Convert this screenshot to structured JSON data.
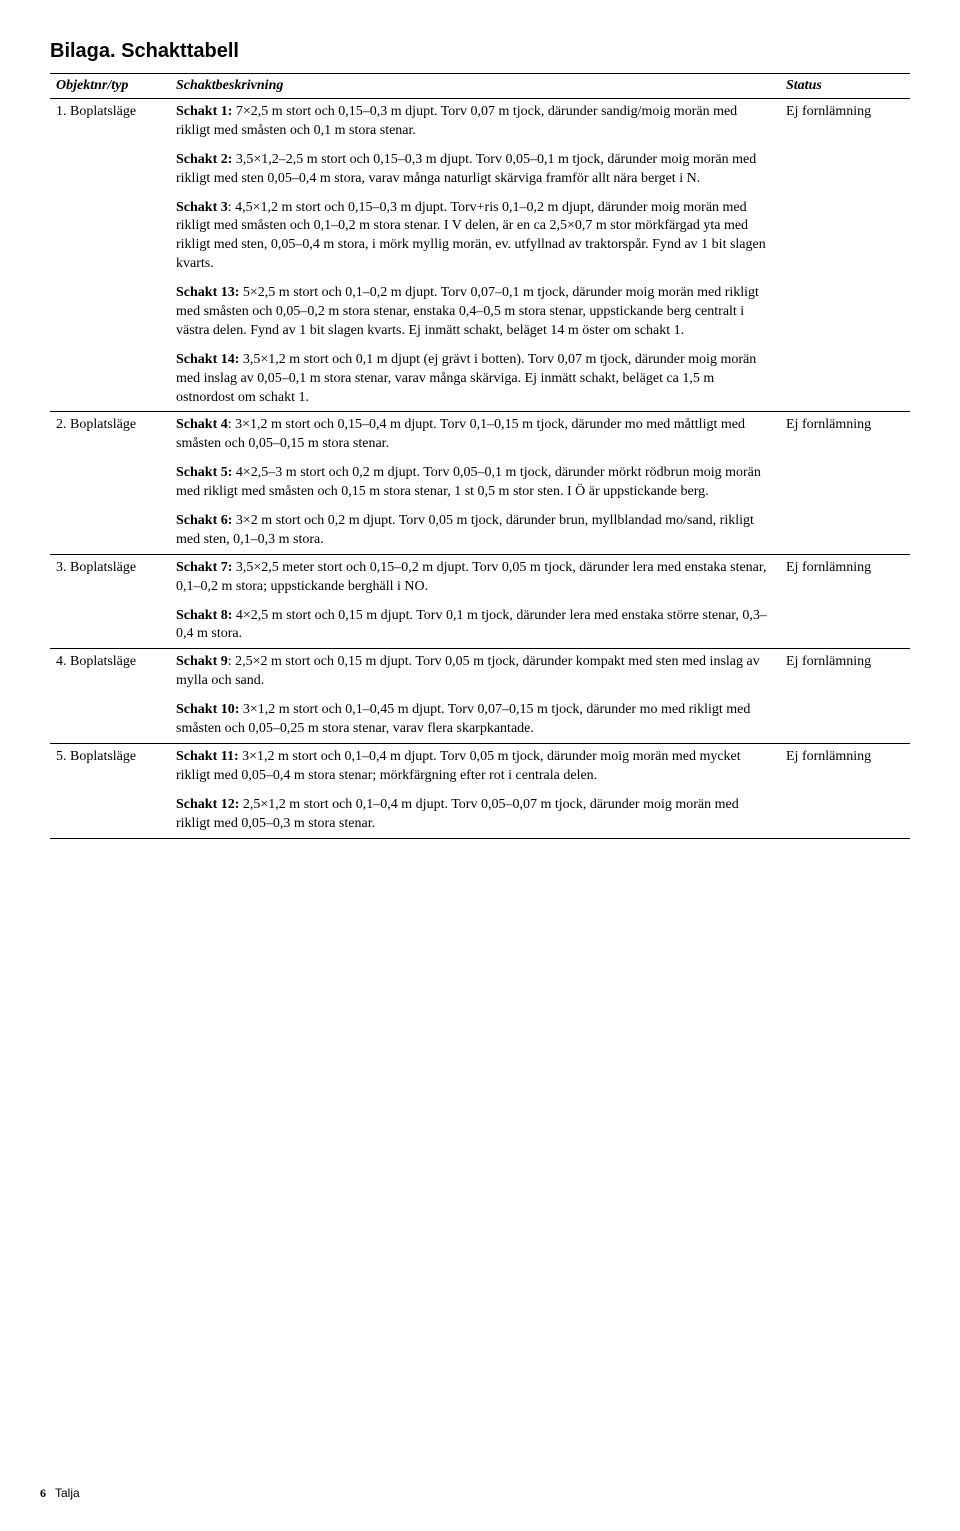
{
  "title": "Bilaga. Schakttabell",
  "columns": [
    "Objektnr/typ",
    "Schaktbeskrivning",
    "Status"
  ],
  "footer": {
    "page": "6",
    "title": "Talja"
  },
  "rows": [
    {
      "obj": "1. Boplatsläge",
      "status": "Ej fornlämning",
      "paras": [
        [
          {
            "b": true,
            "t": "Schakt 1:"
          },
          {
            "b": false,
            "t": " 7×2,5 m stort och 0,15–0,3 m djupt. Torv 0,07 m tjock, därunder sandig/moig morän med rikligt med småsten och 0,1 m stora stenar."
          }
        ],
        [
          {
            "b": true,
            "t": "Schakt 2:"
          },
          {
            "b": false,
            "t": " 3,5×1,2–2,5 m stort och 0,15–0,3 m djupt. Torv 0,05–0,1 m tjock, därunder moig morän med rikligt med sten 0,05–0,4 m stora, varav många naturligt skärviga framför allt nära berget i N."
          }
        ],
        [
          {
            "b": true,
            "t": "Schakt 3"
          },
          {
            "b": false,
            "t": ": 4,5×1,2 m stort och 0,15–0,3 m djupt. Torv+ris 0,1–0,2 m djupt, därunder moig morän med rikligt med småsten och 0,1–0,2 m stora stenar. I V delen, är en ca 2,5×0,7 m stor mörkfärgad yta med rikligt med sten, 0,05–0,4 m stora, i mörk myllig morän, ev. utfyllnad av traktorspår. Fynd av 1 bit slagen kvarts."
          }
        ],
        [
          {
            "b": true,
            "t": "Schakt 13:"
          },
          {
            "b": false,
            "t": " 5×2,5 m stort och 0,1–0,2 m djupt. Torv 0,07–0,1 m tjock, därunder moig morän med rikligt med småsten och 0,05–0,2 m stora stenar, enstaka 0,4–0,5 m stora stenar, uppstickande berg centralt i västra delen. Fynd av 1 bit slagen kvarts. Ej inmätt schakt, beläget 14 m öster om schakt 1."
          }
        ],
        [
          {
            "b": true,
            "t": "Schakt 14:"
          },
          {
            "b": false,
            "t": " 3,5×1,2 m stort och 0,1 m djupt (ej grävt i botten). Torv 0,07 m tjock, därunder moig morän med inslag av 0,05–0,1 m stora stenar, varav många skärviga. Ej inmätt schakt, beläget ca 1,5 m ostnordost om schakt 1."
          }
        ]
      ]
    },
    {
      "obj": "2. Boplatsläge",
      "status": "Ej fornlämning",
      "paras": [
        [
          {
            "b": true,
            "t": "Schakt 4"
          },
          {
            "b": false,
            "t": ": 3×1,2 m stort och 0,15–0,4 m djupt. Torv 0,1–0,15 m tjock, därunder mo med måttligt med småsten och 0,05–0,15 m stora stenar."
          }
        ],
        [
          {
            "b": true,
            "t": "Schakt 5:"
          },
          {
            "b": false,
            "t": " 4×2,5–3 m stort och 0,2 m djupt. Torv 0,05–0,1 m tjock, därunder mörkt rödbrun moig morän med rikligt med småsten och 0,15 m stora stenar, 1 st 0,5 m stor sten. I Ö är uppstickande berg."
          }
        ],
        [
          {
            "b": true,
            "t": "Schakt 6:"
          },
          {
            "b": false,
            "t": " 3×2 m stort och 0,2 m djupt. Torv 0,05 m tjock, därunder brun, myllblandad mo/sand, rikligt med sten, 0,1–0,3 m stora."
          }
        ]
      ]
    },
    {
      "obj": "3. Boplatsläge",
      "status": "Ej fornlämning",
      "paras": [
        [
          {
            "b": true,
            "t": "Schakt 7:"
          },
          {
            "b": false,
            "t": " 3,5×2,5 meter stort och 0,15–0,2 m djupt. Torv 0,05 m tjock, därunder lera med enstaka stenar, 0,1–0,2 m stora; uppstickande berghäll i NO."
          }
        ],
        [
          {
            "b": true,
            "t": "Schakt 8:"
          },
          {
            "b": false,
            "t": " 4×2,5 m stort och 0,15 m djupt. Torv 0,1 m tjock, därunder lera med enstaka större stenar, 0,3–0,4 m stora."
          }
        ]
      ]
    },
    {
      "obj": "4. Boplatsläge",
      "status": "Ej fornlämning",
      "paras": [
        [
          {
            "b": true,
            "t": "Schakt 9"
          },
          {
            "b": false,
            "t": ": 2,5×2 m stort och 0,15 m djupt. Torv 0,05 m tjock, därunder kompakt med sten med inslag av mylla och sand."
          }
        ],
        [
          {
            "b": true,
            "t": "Schakt 10:"
          },
          {
            "b": false,
            "t": " 3×1,2 m stort och 0,1–0,45 m djupt. Torv 0,07–0,15 m tjock, därunder mo med rikligt med småsten och 0,05–0,25 m stora stenar, varav flera skarpkantade."
          }
        ]
      ]
    },
    {
      "obj": "5. Boplatsläge",
      "status": "Ej fornlämning",
      "paras": [
        [
          {
            "b": true,
            "t": "Schakt 11:"
          },
          {
            "b": false,
            "t": " 3×1,2 m stort och 0,1–0,4 m djupt. Torv 0,05 m tjock, därunder moig morän med mycket rikligt med 0,05–0,4 m stora stenar; mörkfärgning efter rot i centrala delen."
          }
        ],
        [
          {
            "b": true,
            "t": "Schakt 12:"
          },
          {
            "b": false,
            "t": " 2,5×1,2 m stort och 0,1–0,4 m djupt. Torv 0,05–0,07 m tjock, därunder moig morän med rikligt med 0,05–0,3 m stora stenar."
          }
        ]
      ]
    }
  ]
}
